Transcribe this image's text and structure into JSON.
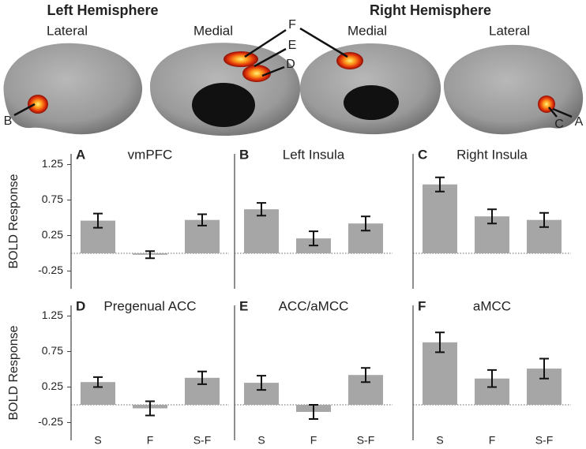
{
  "brain_figure": {
    "left_title": "Left Hemisphere",
    "right_title": "Right Hemisphere",
    "views": [
      "Lateral",
      "Medial",
      "Medial",
      "Lateral"
    ],
    "callouts": [
      "B",
      "F",
      "E",
      "D",
      "C",
      "A"
    ]
  },
  "chart_data": [
    {
      "type": "bar",
      "panel": "A",
      "title": "vmPFC",
      "ylabel": "BOLD Response",
      "values": [
        0.46,
        -0.02,
        0.47
      ],
      "errors": [
        0.1,
        0.05,
        0.08
      ],
      "color": "#a6a6a6",
      "ylim": [
        -0.5,
        1.4
      ],
      "yticks": [
        1.25,
        0.75,
        0.25,
        -0.25
      ]
    },
    {
      "type": "bar",
      "panel": "B",
      "title": "Left Insula",
      "values": [
        0.62,
        0.21,
        0.42
      ],
      "errors": [
        0.09,
        0.1,
        0.1
      ],
      "color": "#a6a6a6",
      "ylim": [
        -0.5,
        1.4
      ]
    },
    {
      "type": "bar",
      "panel": "C",
      "title": "Right Insula",
      "values": [
        0.97,
        0.52,
        0.47
      ],
      "errors": [
        0.1,
        0.1,
        0.1
      ],
      "color": "#a6a6a6",
      "ylim": [
        -0.5,
        1.4
      ]
    },
    {
      "type": "bar",
      "panel": "D",
      "title": "Pregenual ACC",
      "ylabel": "BOLD Response",
      "categories": [
        "S",
        "F",
        "S-F"
      ],
      "values": [
        0.32,
        -0.05,
        0.38
      ],
      "errors": [
        0.07,
        0.1,
        0.09
      ],
      "color": "#a6a6a6",
      "ylim": [
        -0.5,
        1.4
      ],
      "yticks": [
        1.25,
        0.75,
        0.25,
        -0.25
      ]
    },
    {
      "type": "bar",
      "panel": "E",
      "title": "ACC/aMCC",
      "categories": [
        "S",
        "F",
        "S-F"
      ],
      "values": [
        0.31,
        -0.1,
        0.42
      ],
      "errors": [
        0.1,
        0.1,
        0.1
      ],
      "color": "#a6a6a6",
      "ylim": [
        -0.5,
        1.4
      ]
    },
    {
      "type": "bar",
      "panel": "F",
      "title": "aMCC",
      "categories": [
        "S",
        "F",
        "S-F"
      ],
      "values": [
        0.88,
        0.37,
        0.51
      ],
      "errors": [
        0.14,
        0.12,
        0.14
      ],
      "color": "#a6a6a6",
      "ylim": [
        -0.5,
        1.4
      ]
    }
  ]
}
